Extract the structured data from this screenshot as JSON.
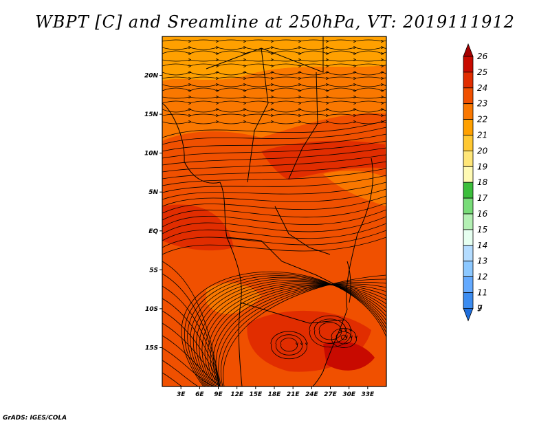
{
  "title": "WBPT [C] and Sreamline at 250hPa, VT: 2019111912",
  "credit": "GrADS: IGES/COLA",
  "map": {
    "lon_range": [
      0,
      36
    ],
    "lat_range": [
      -20,
      25
    ],
    "lat_ticks": [
      {
        "value": 20,
        "label": "20N"
      },
      {
        "value": 15,
        "label": "15N"
      },
      {
        "value": 10,
        "label": "10N"
      },
      {
        "value": 5,
        "label": "5N"
      },
      {
        "value": 0,
        "label": "EQ"
      },
      {
        "value": -5,
        "label": "5S"
      },
      {
        "value": -10,
        "label": "10S"
      },
      {
        "value": -15,
        "label": "15S"
      }
    ],
    "lon_ticks": [
      {
        "value": 3,
        "label": "3E"
      },
      {
        "value": 6,
        "label": "6E"
      },
      {
        "value": 9,
        "label": "9E"
      },
      {
        "value": 12,
        "label": "12E"
      },
      {
        "value": 15,
        "label": "15E"
      },
      {
        "value": 18,
        "label": "18E"
      },
      {
        "value": 21,
        "label": "21E"
      },
      {
        "value": 24,
        "label": "24E"
      },
      {
        "value": 27,
        "label": "27E"
      },
      {
        "value": 30,
        "label": "30E"
      },
      {
        "value": 33,
        "label": "33E"
      }
    ]
  },
  "colorbar": {
    "levels": [
      {
        "label": "26",
        "color": "#a50000"
      },
      {
        "label": "25",
        "color": "#c80a00"
      },
      {
        "label": "24",
        "color": "#e12d00"
      },
      {
        "label": "23",
        "color": "#f05000"
      },
      {
        "label": "22",
        "color": "#fa7800"
      },
      {
        "label": "21",
        "color": "#ffa000"
      },
      {
        "label": "20",
        "color": "#ffc832"
      },
      {
        "label": "19",
        "color": "#ffe678"
      },
      {
        "label": "18",
        "color": "#fffab4"
      },
      {
        "label": "17",
        "color": "#3cbe3c"
      },
      {
        "label": "16",
        "color": "#78dc78"
      },
      {
        "label": "15",
        "color": "#b4f0b4"
      },
      {
        "label": "14",
        "color": "#e6fff0"
      },
      {
        "label": "13",
        "color": "#b4dcff"
      },
      {
        "label": "12",
        "color": "#8cc8ff"
      },
      {
        "label": "11",
        "color": "#64aaff"
      },
      {
        "label": "9",
        "color": "#3c8cf0"
      },
      {
        "label": "7",
        "color": "#1e6edc"
      }
    ]
  }
}
